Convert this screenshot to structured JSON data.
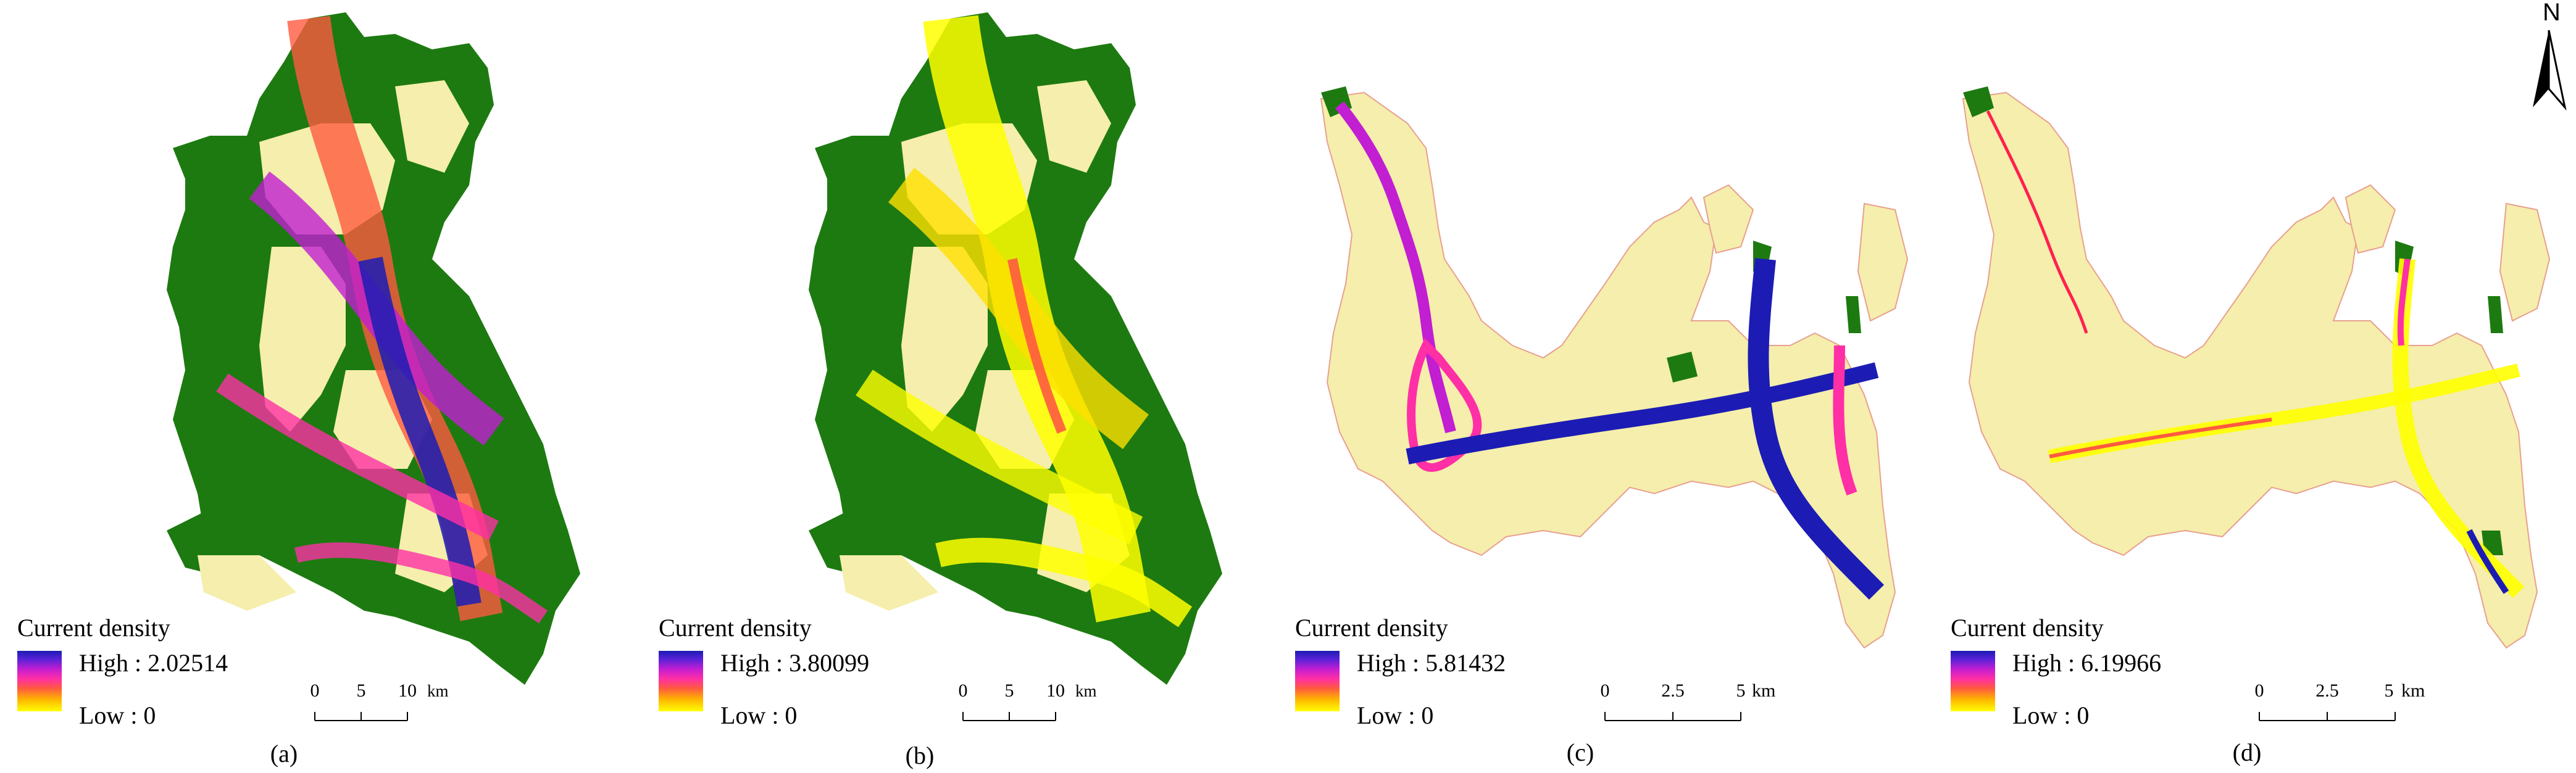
{
  "north_arrow": {
    "label": "N",
    "icon": "north-arrow-icon"
  },
  "colors": {
    "forest": "#1d7a10",
    "land": "#f5eeac",
    "current_high": "#1c1cb4",
    "current_mid": "#ff2fa6",
    "current_low": "#ffff00"
  },
  "panels": [
    {
      "id": "a",
      "label": "(a)",
      "legend_title": "Current density",
      "high": "High : 2.02514",
      "low": "Low : 0",
      "scale_ticks": [
        "0",
        "5",
        "10"
      ],
      "scale_unit": "km"
    },
    {
      "id": "b",
      "label": "(b)",
      "legend_title": "Current density",
      "high": "High : 3.80099",
      "low": "Low : 0",
      "scale_ticks": [
        "0",
        "5",
        "10"
      ],
      "scale_unit": "km"
    },
    {
      "id": "c",
      "label": "(c)",
      "legend_title": "Current density",
      "high": "High : 5.81432",
      "low": "Low : 0",
      "scale_ticks": [
        "0",
        "2.5",
        "5"
      ],
      "scale_unit": "km"
    },
    {
      "id": "d",
      "label": "(d)",
      "legend_title": "Current density",
      "high": "High : 6.19966",
      "low": "Low : 0",
      "scale_ticks": [
        "0",
        "2.5",
        "5"
      ],
      "scale_unit": "km"
    }
  ]
}
